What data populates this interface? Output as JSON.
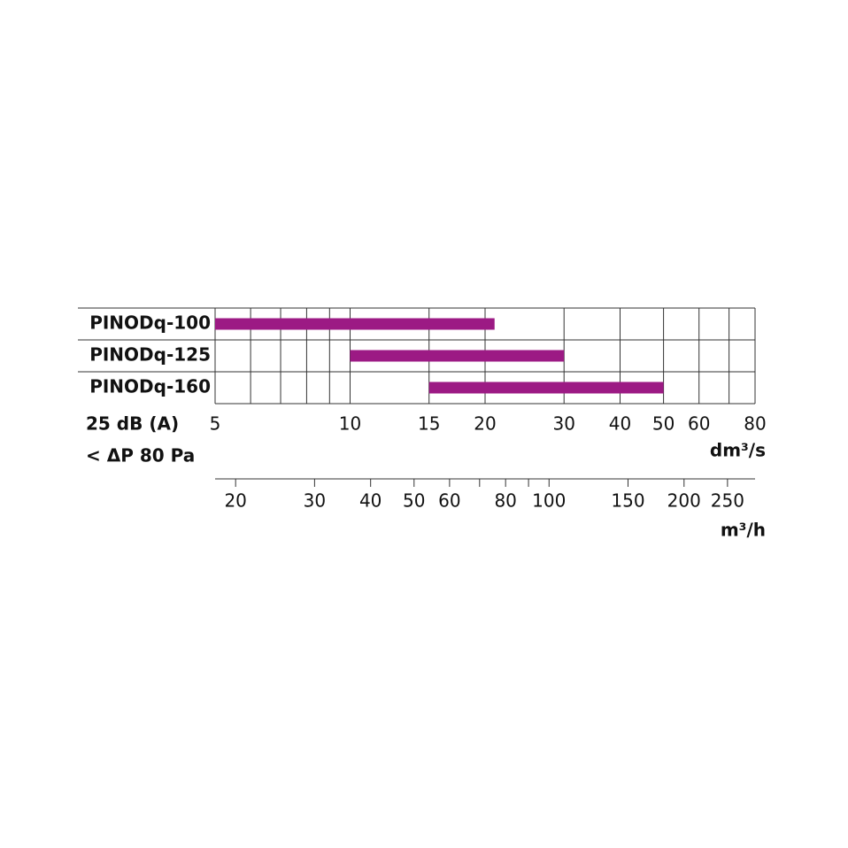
{
  "chart_data": {
    "type": "range_bar",
    "categories": [
      "PINODq-100",
      "PINODq-125",
      "PINODq-160"
    ],
    "values": [
      [
        5,
        21
      ],
      [
        10,
        30
      ],
      [
        15,
        50
      ]
    ],
    "color": "#9c1a84",
    "x_log": true,
    "xlim": [
      5,
      80
    ],
    "xticks": [
      5,
      10,
      15,
      20,
      30,
      40,
      50,
      60,
      80
    ],
    "x_minor_grid": [
      6,
      7,
      8,
      9,
      70
    ],
    "xlabel": "dm³/s",
    "x2lim": [
      18,
      288
    ],
    "x2ticks": [
      20,
      30,
      40,
      50,
      60,
      80,
      100,
      150,
      200,
      250
    ],
    "x2_minor_ticks": [
      70,
      90
    ],
    "x2label": "m³/h",
    "annotations": [
      "25 dB (A)",
      "< ΔP 80 Pa"
    ],
    "grid": true
  }
}
